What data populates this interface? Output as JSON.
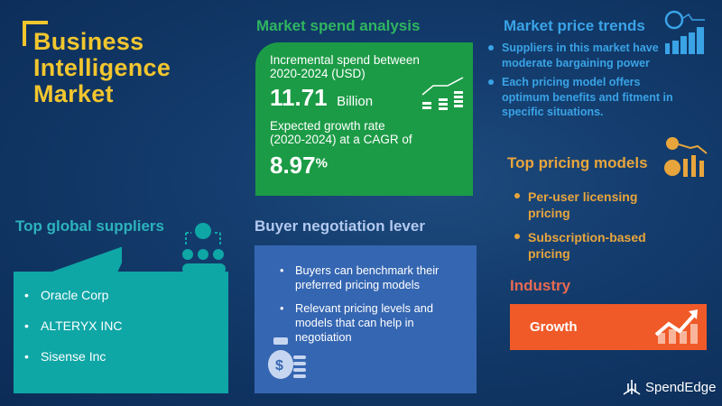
{
  "title": {
    "line1": "Business",
    "line2": "Intelligence",
    "line3": "Market"
  },
  "spend": {
    "heading": "Market spend analysis",
    "incremental_label_1": "Incremental spend between",
    "incremental_label_2": "2020-2024 (USD)",
    "incremental_value": "11.71",
    "incremental_unit": "Billion",
    "growth_label_1": "Expected growth rate",
    "growth_label_2": "(2020-2024) at a CAGR of",
    "cagr_value": "8.97",
    "cagr_unit": "%"
  },
  "price_trends": {
    "heading": "Market price trends",
    "items": [
      "Suppliers in this market have moderate bargaining power",
      "Each pricing model offers optimum benefits and fitment in specific situations."
    ]
  },
  "pricing_models": {
    "heading": "Top pricing models",
    "items": [
      "Per-user licensing pricing",
      "Subscription-based pricing"
    ]
  },
  "industry": {
    "heading": "Industry",
    "value": "Growth"
  },
  "suppliers": {
    "heading": "Top global suppliers",
    "items": [
      "Oracle Corp",
      "ALTERYX INC",
      "Sisense Inc"
    ]
  },
  "negotiation": {
    "heading": "Buyer negotiation lever",
    "items": [
      "Buyers can benchmark their preferred pricing models",
      "Relevant pricing levels and models that can help in negotiation"
    ]
  },
  "brand": {
    "logo_text": "SpendEdge"
  },
  "colors": {
    "title": "#f2c62e",
    "spend": "#1c9b46",
    "trends": "#3aa3e6",
    "pricing": "#e8a53c",
    "industry": "#f05a28",
    "suppliers": "#0fa6a6",
    "negotiation": "#3566b2"
  }
}
